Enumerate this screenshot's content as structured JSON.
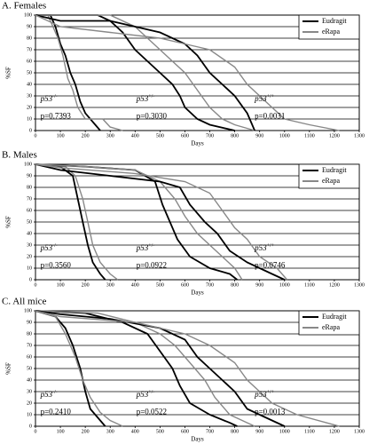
{
  "chart_data": [
    {
      "type": "line",
      "title": "A. Females",
      "xlabel": "Days",
      "ylabel": "%SF",
      "xlim": [
        0,
        1300
      ],
      "ylim": [
        0,
        100
      ],
      "xticks": [
        0,
        100,
        200,
        300,
        400,
        500,
        600,
        700,
        800,
        900,
        1000,
        1100,
        1200,
        1300
      ],
      "yticks": [
        0,
        10,
        20,
        30,
        40,
        50,
        60,
        70,
        80,
        90,
        100
      ],
      "grid": true,
      "legend": "upper right",
      "series": [
        {
          "name": "Eudragit",
          "color": "#000000",
          "x": [
            0,
            60,
            80,
            100,
            120,
            140,
            160,
            180,
            200,
            240,
            260
          ],
          "values": [
            100,
            100,
            90,
            75,
            65,
            50,
            40,
            25,
            15,
            5,
            0
          ]
        },
        {
          "name": "eRapa",
          "color": "#888888",
          "x": [
            0,
            50,
            90,
            110,
            130,
            150,
            170,
            200,
            270,
            300,
            350
          ],
          "values": [
            100,
            100,
            80,
            65,
            45,
            35,
            20,
            10,
            10,
            3,
            0
          ]
        },
        {
          "name": "Eudragit",
          "color": "#000000",
          "x": [
            0,
            250,
            300,
            350,
            400,
            450,
            500,
            550,
            580,
            600,
            650,
            700,
            800
          ],
          "values": [
            100,
            100,
            95,
            85,
            70,
            60,
            50,
            40,
            30,
            20,
            10,
            5,
            0
          ]
        },
        {
          "name": "eRapa",
          "color": "#888888",
          "x": [
            0,
            300,
            400,
            450,
            500,
            550,
            600,
            650,
            700,
            750,
            800,
            880
          ],
          "values": [
            100,
            100,
            90,
            80,
            70,
            60,
            50,
            35,
            20,
            10,
            5,
            0
          ]
        },
        {
          "name": "Eudragit",
          "color": "#000000",
          "x": [
            0,
            100,
            300,
            400,
            500,
            600,
            650,
            700,
            750,
            800,
            850,
            880
          ],
          "values": [
            100,
            95,
            95,
            90,
            85,
            75,
            65,
            50,
            40,
            30,
            15,
            0
          ]
        },
        {
          "name": "eRapa",
          "color": "#888888",
          "x": [
            0,
            100,
            300,
            500,
            600,
            700,
            800,
            850,
            900,
            950,
            1000,
            1100,
            1220
          ],
          "values": [
            100,
            90,
            85,
            80,
            75,
            70,
            55,
            40,
            30,
            20,
            10,
            5,
            0
          ]
        }
      ],
      "annotations": [
        {
          "label": "p53",
          "sup": "-/-",
          "p": "p=0.7393"
        },
        {
          "label": "p53",
          "sup": "+/-",
          "p": "p=0.3030"
        },
        {
          "label": "p53",
          "sup": "+/+",
          "p": "p=0.0031"
        }
      ]
    },
    {
      "type": "line",
      "title": "B. Males",
      "xlabel": "Days",
      "ylabel": "%SF",
      "xlim": [
        0,
        1300
      ],
      "ylim": [
        0,
        100
      ],
      "xticks": [
        0,
        100,
        200,
        300,
        400,
        500,
        600,
        700,
        800,
        900,
        1000,
        1100,
        1200,
        1300
      ],
      "yticks": [
        0,
        10,
        20,
        30,
        40,
        50,
        60,
        70,
        80,
        90,
        100
      ],
      "grid": true,
      "legend": "upper right",
      "series": [
        {
          "name": "Eudragit",
          "color": "#000000",
          "x": [
            0,
            100,
            150,
            170,
            190,
            210,
            230,
            260,
            280
          ],
          "values": [
            100,
            98,
            90,
            70,
            50,
            30,
            15,
            5,
            0
          ]
        },
        {
          "name": "eRapa",
          "color": "#888888",
          "x": [
            0,
            120,
            160,
            190,
            210,
            230,
            260,
            300,
            330
          ],
          "values": [
            100,
            98,
            90,
            70,
            50,
            30,
            15,
            5,
            0
          ]
        },
        {
          "name": "Eudragit",
          "color": "#000000",
          "x": [
            0,
            200,
            400,
            480,
            510,
            540,
            570,
            620,
            700,
            780,
            810
          ],
          "values": [
            100,
            98,
            95,
            85,
            65,
            50,
            35,
            20,
            10,
            5,
            0
          ]
        },
        {
          "name": "eRapa",
          "color": "#888888",
          "x": [
            0,
            200,
            400,
            500,
            560,
            600,
            650,
            700,
            750,
            800,
            830
          ],
          "values": [
            100,
            98,
            95,
            85,
            70,
            55,
            40,
            30,
            20,
            10,
            0
          ]
        },
        {
          "name": "Eudragit",
          "color": "#000000",
          "x": [
            0,
            100,
            300,
            500,
            580,
            620,
            680,
            730,
            780,
            850,
            950,
            1000
          ],
          "values": [
            100,
            95,
            90,
            85,
            80,
            65,
            50,
            40,
            25,
            15,
            5,
            0
          ]
        },
        {
          "name": "eRapa",
          "color": "#888888",
          "x": [
            0,
            100,
            400,
            600,
            700,
            750,
            800,
            850,
            900,
            970,
            1010
          ],
          "values": [
            100,
            97,
            92,
            85,
            75,
            60,
            45,
            35,
            20,
            10,
            0
          ]
        }
      ],
      "annotations": [
        {
          "label": "p53",
          "sup": "-/-",
          "p": "p=0.3560"
        },
        {
          "label": "p53",
          "sup": "+/-",
          "p": "p=0.0922"
        },
        {
          "label": "p53",
          "sup": "+/+",
          "p": "p=0.0746"
        }
      ]
    },
    {
      "type": "line",
      "title": "C. All mice",
      "xlabel": "Days",
      "ylabel": "%SF",
      "xlim": [
        0,
        1300
      ],
      "ylim": [
        0,
        100
      ],
      "xticks": [
        0,
        100,
        200,
        300,
        400,
        500,
        600,
        700,
        800,
        900,
        1000,
        1100,
        1200,
        1300
      ],
      "yticks": [
        0,
        10,
        20,
        30,
        40,
        50,
        60,
        70,
        80,
        90,
        100
      ],
      "grid": true,
      "legend": "upper right",
      "series": [
        {
          "name": "Eudragit",
          "color": "#000000",
          "x": [
            0,
            80,
            120,
            150,
            180,
            200,
            220,
            260,
            280
          ],
          "values": [
            100,
            95,
            85,
            70,
            50,
            30,
            15,
            5,
            0
          ]
        },
        {
          "name": "eRapa",
          "color": "#888888",
          "x": [
            0,
            80,
            120,
            160,
            190,
            220,
            260,
            300,
            350
          ],
          "values": [
            100,
            95,
            80,
            60,
            40,
            25,
            12,
            5,
            0
          ]
        },
        {
          "name": "Eudragit",
          "color": "#000000",
          "x": [
            0,
            200,
            350,
            450,
            500,
            550,
            580,
            620,
            700,
            780,
            810
          ],
          "values": [
            100,
            98,
            90,
            80,
            65,
            50,
            35,
            20,
            10,
            3,
            0
          ]
        },
        {
          "name": "eRapa",
          "color": "#888888",
          "x": [
            0,
            250,
            400,
            500,
            560,
            620,
            680,
            720,
            780,
            850,
            880
          ],
          "values": [
            100,
            98,
            90,
            80,
            70,
            55,
            40,
            25,
            10,
            3,
            0
          ]
        },
        {
          "name": "Eudragit",
          "color": "#000000",
          "x": [
            0,
            100,
            300,
            500,
            600,
            650,
            700,
            750,
            800,
            850,
            950,
            1000
          ],
          "values": [
            100,
            97,
            93,
            85,
            75,
            60,
            50,
            40,
            30,
            15,
            5,
            0
          ]
        },
        {
          "name": "eRapa",
          "color": "#888888",
          "x": [
            0,
            100,
            400,
            600,
            700,
            800,
            850,
            900,
            950,
            1050,
            1220
          ],
          "values": [
            100,
            95,
            90,
            80,
            70,
            55,
            40,
            30,
            20,
            10,
            0
          ]
        }
      ],
      "annotations": [
        {
          "label": "p53",
          "sup": "-/-",
          "p": "p=0.2410"
        },
        {
          "label": "p53",
          "sup": "+/-",
          "p": "p=0.0522"
        },
        {
          "label": "p53",
          "sup": "+/+",
          "p": "p=0.0013"
        }
      ]
    }
  ]
}
